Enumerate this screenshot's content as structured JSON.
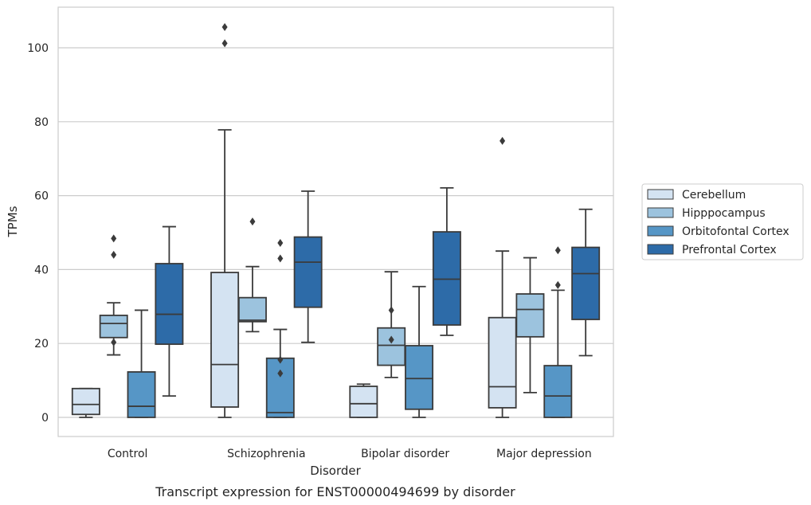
{
  "chart_data": {
    "type": "box",
    "caption": "Transcript expression for ENST00000494699 by disorder",
    "xlabel": "Disorder",
    "ylabel": "TPMs",
    "ylim": [
      -5,
      111
    ],
    "yticks": [
      0,
      20,
      40,
      60,
      80,
      100
    ],
    "grid": "horizontal",
    "legend_position": "right",
    "categories": [
      "Control",
      "Schizophrenia",
      "Bipolar disorder",
      "Major depression"
    ],
    "series": [
      {
        "name": "Cerebellum",
        "color": "#d4e3f2",
        "boxes": [
          {
            "whisker_low": 0,
            "q1": 0.8,
            "median": 3.5,
            "q3": 7.8,
            "whisker_high": 7.8,
            "outliers": []
          },
          {
            "whisker_low": 0,
            "q1": 2.8,
            "median": 14.3,
            "q3": 39.2,
            "whisker_high": 77.8,
            "outliers": [
              101.2,
              105.6
            ]
          },
          {
            "whisker_low": 0,
            "q1": 0,
            "median": 3.7,
            "q3": 8.4,
            "whisker_high": 9.0,
            "outliers": []
          },
          {
            "whisker_low": 0,
            "q1": 2.6,
            "median": 8.3,
            "q3": 27.0,
            "whisker_high": 45.0,
            "outliers": [
              74.8
            ]
          }
        ]
      },
      {
        "name": "Hipppocampus",
        "color": "#9cc3de",
        "boxes": [
          {
            "whisker_low": 16.9,
            "q1": 21.6,
            "median": 25.4,
            "q3": 27.6,
            "whisker_high": 31.0,
            "outliers": [
              20.3,
              44.0,
              48.4
            ]
          },
          {
            "whisker_low": 23.2,
            "q1": 25.9,
            "median": 26.3,
            "q3": 32.4,
            "whisker_high": 40.8,
            "outliers": [
              53.0
            ]
          },
          {
            "whisker_low": 10.8,
            "q1": 14.1,
            "median": 19.5,
            "q3": 24.2,
            "whisker_high": 39.4,
            "outliers": [
              21.0,
              29.0
            ]
          },
          {
            "whisker_low": 6.7,
            "q1": 21.8,
            "median": 29.2,
            "q3": 33.4,
            "whisker_high": 43.2,
            "outliers": []
          }
        ]
      },
      {
        "name": "Orbitofontal Cortex",
        "color": "#5696c6",
        "boxes": [
          {
            "whisker_low": 0,
            "q1": 0,
            "median": 3.0,
            "q3": 12.3,
            "whisker_high": 29.0,
            "outliers": []
          },
          {
            "whisker_low": 0,
            "q1": 0,
            "median": 1.3,
            "q3": 16.0,
            "whisker_high": 23.8,
            "outliers": [
              11.9,
              15.6,
              43.0,
              47.2
            ]
          },
          {
            "whisker_low": 0,
            "q1": 2.2,
            "median": 10.5,
            "q3": 19.4,
            "whisker_high": 35.4,
            "outliers": []
          },
          {
            "whisker_low": 0,
            "q1": 0,
            "median": 5.8,
            "q3": 14.0,
            "whisker_high": 34.4,
            "outliers": [
              35.8,
              45.2
            ]
          }
        ]
      },
      {
        "name": "Prefrontal Cortex",
        "color": "#2d6ba8",
        "boxes": [
          {
            "whisker_low": 5.8,
            "q1": 19.8,
            "median": 27.9,
            "q3": 41.6,
            "whisker_high": 51.6,
            "outliers": []
          },
          {
            "whisker_low": 20.3,
            "q1": 29.8,
            "median": 42.0,
            "q3": 48.8,
            "whisker_high": 61.2,
            "outliers": []
          },
          {
            "whisker_low": 22.2,
            "q1": 25.0,
            "median": 37.4,
            "q3": 50.2,
            "whisker_high": 62.1,
            "outliers": []
          },
          {
            "whisker_low": 16.7,
            "q1": 26.5,
            "median": 38.9,
            "q3": 46.0,
            "whisker_high": 56.3,
            "outliers": []
          }
        ]
      }
    ]
  }
}
